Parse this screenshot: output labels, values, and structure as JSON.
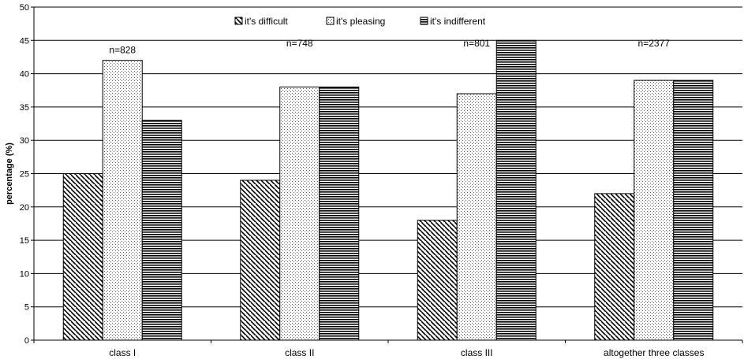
{
  "chart_data": {
    "type": "bar",
    "categories": [
      "class I",
      "class II",
      "class III",
      "altogether three classes"
    ],
    "series": [
      {
        "name": "it's difficult",
        "values": [
          25,
          24,
          18,
          22
        ],
        "pattern": "diagonal"
      },
      {
        "name": "it's pleasing",
        "values": [
          42,
          38,
          37,
          39
        ],
        "pattern": "dots"
      },
      {
        "name": "it's indifferent",
        "values": [
          33,
          38,
          45,
          39
        ],
        "pattern": "horizontal"
      }
    ],
    "annotations": [
      "n=828",
      "n=748",
      "n=801",
      "n=2377"
    ],
    "title": "",
    "xlabel": "",
    "ylabel": "percentage (%)",
    "ylim": [
      0,
      50
    ],
    "yticks": [
      0,
      5,
      10,
      15,
      20,
      25,
      30,
      35,
      40,
      45,
      50
    ],
    "grid": true,
    "legend_position": "top-center",
    "colors": {
      "stroke": "#000000",
      "grid": "#000000",
      "fill": "#ffffff"
    }
  }
}
